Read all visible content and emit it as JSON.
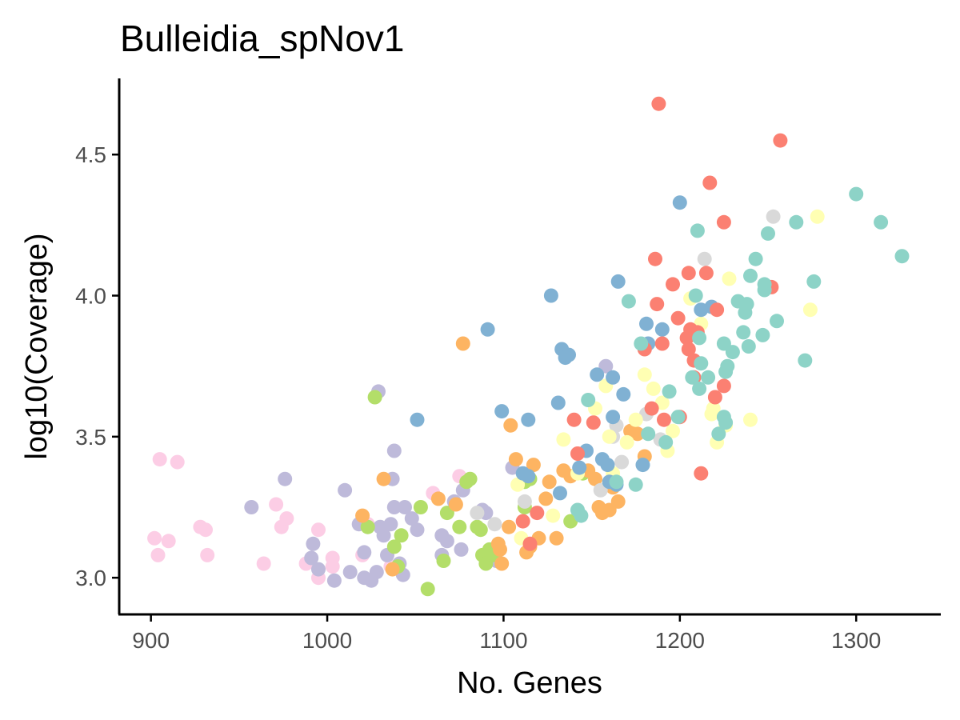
{
  "chart_data": {
    "type": "scatter",
    "title": "Bulleidia_spNov1",
    "xlabel": "No. Genes",
    "ylabel": "log10(Coverage)",
    "xlim": [
      882,
      1348
    ],
    "ylim": [
      2.87,
      4.77
    ],
    "x_ticks": [
      900,
      1000,
      1100,
      1200,
      1300
    ],
    "y_ticks": [
      3.0,
      3.5,
      4.0,
      4.5
    ],
    "x_tick_labels": [
      "900",
      "1000",
      "1100",
      "1200",
      "1300"
    ],
    "y_tick_labels": [
      "3.0",
      "3.5",
      "4.0",
      "4.5"
    ],
    "grid": false,
    "legend": "none",
    "point_colors": {
      "teal": "#8DD3C7",
      "yellow": "#FFFFB3",
      "lavender": "#BEBADA",
      "salmon": "#FB8072",
      "blue": "#80B1D3",
      "orange": "#FDB462",
      "green": "#B3DE69",
      "pink": "#FCCDE5",
      "grey": "#D9D9D9"
    },
    "series": [
      {
        "color": "#FCCDE5",
        "points": [
          [
            902,
            3.14
          ],
          [
            904,
            3.08
          ],
          [
            905,
            3.42
          ],
          [
            910,
            3.13
          ],
          [
            915,
            3.41
          ],
          [
            928,
            3.18
          ],
          [
            931,
            3.17
          ],
          [
            932,
            3.08
          ],
          [
            964,
            3.05
          ],
          [
            971,
            3.26
          ],
          [
            974,
            3.18
          ],
          [
            977,
            3.21
          ],
          [
            988,
            3.05
          ],
          [
            995,
            3.17
          ],
          [
            995,
            3.0
          ],
          [
            1003,
            3.07
          ],
          [
            1003,
            3.04
          ],
          [
            1020,
            3.08
          ],
          [
            1023,
            3.19
          ],
          [
            1036,
            3.04
          ],
          [
            1060,
            3.3
          ],
          [
            1075,
            3.36
          ]
        ]
      },
      {
        "color": "#BEBADA",
        "points": [
          [
            957,
            3.25
          ],
          [
            976,
            3.35
          ],
          [
            991,
            3.07
          ],
          [
            992,
            3.12
          ],
          [
            995,
            3.03
          ],
          [
            1004,
            2.99
          ],
          [
            1010,
            3.31
          ],
          [
            1013,
            3.02
          ],
          [
            1018,
            3.19
          ],
          [
            1021,
            3.09
          ],
          [
            1021,
            3.0
          ],
          [
            1025,
            2.99
          ],
          [
            1028,
            3.02
          ],
          [
            1029,
            3.66
          ],
          [
            1030,
            3.18
          ],
          [
            1032,
            3.15
          ],
          [
            1034,
            3.08
          ],
          [
            1036,
            3.19
          ],
          [
            1037,
            3.35
          ],
          [
            1038,
            3.45
          ],
          [
            1038,
            3.25
          ],
          [
            1041,
            3.05
          ],
          [
            1043,
            3.01
          ],
          [
            1044,
            3.25
          ],
          [
            1048,
            3.21
          ],
          [
            1051,
            3.17
          ],
          [
            1065,
            3.15
          ],
          [
            1065,
            3.08
          ],
          [
            1068,
            3.13
          ],
          [
            1072,
            3.27
          ],
          [
            1076,
            3.1
          ],
          [
            1077,
            3.31
          ],
          [
            1088,
            3.24
          ],
          [
            1090,
            3.23
          ],
          [
            1096,
            3.06
          ],
          [
            1105,
            3.39
          ],
          [
            1158,
            3.75
          ]
        ]
      },
      {
        "color": "#B3DE69",
        "points": [
          [
            1023,
            3.18
          ],
          [
            1027,
            3.64
          ],
          [
            1038,
            3.11
          ],
          [
            1040,
            3.04
          ],
          [
            1042,
            3.15
          ],
          [
            1053,
            3.25
          ],
          [
            1057,
            2.96
          ],
          [
            1066,
            3.06
          ],
          [
            1068,
            3.23
          ],
          [
            1075,
            3.18
          ],
          [
            1079,
            3.34
          ],
          [
            1081,
            3.35
          ],
          [
            1085,
            3.18
          ],
          [
            1087,
            3.17
          ],
          [
            1088,
            3.08
          ],
          [
            1090,
            3.05
          ],
          [
            1092,
            3.1
          ],
          [
            1094,
            3.08
          ],
          [
            1112,
            3.34
          ],
          [
            1112,
            3.25
          ],
          [
            1115,
            3.35
          ],
          [
            1138,
            3.2
          ],
          [
            1145,
            3.37
          ]
        ]
      },
      {
        "color": "#FDB462",
        "points": [
          [
            1020,
            3.22
          ],
          [
            1032,
            3.35
          ],
          [
            1037,
            3.03
          ],
          [
            1063,
            3.28
          ],
          [
            1073,
            3.26
          ],
          [
            1077,
            3.83
          ],
          [
            1097,
            3.12
          ],
          [
            1098,
            3.1
          ],
          [
            1099,
            3.05
          ],
          [
            1103,
            3.18
          ],
          [
            1104,
            3.54
          ],
          [
            1107,
            3.42
          ],
          [
            1113,
            3.09
          ],
          [
            1115,
            3.11
          ],
          [
            1117,
            3.4
          ],
          [
            1120,
            3.14
          ],
          [
            1124,
            3.28
          ],
          [
            1126,
            3.34
          ],
          [
            1130,
            3.14
          ],
          [
            1134,
            3.38
          ],
          [
            1138,
            3.36
          ],
          [
            1148,
            3.38
          ],
          [
            1152,
            3.35
          ],
          [
            1154,
            3.25
          ],
          [
            1156,
            3.23
          ],
          [
            1160,
            3.24
          ],
          [
            1162,
            3.32
          ],
          [
            1165,
            3.27
          ],
          [
            1172,
            3.52
          ],
          [
            1176,
            3.51
          ],
          [
            1180,
            3.43
          ]
        ]
      },
      {
        "color": "#D9D9D9",
        "points": [
          [
            1085,
            3.23
          ],
          [
            1095,
            3.19
          ],
          [
            1112,
            3.27
          ],
          [
            1155,
            3.31
          ],
          [
            1162,
            3.5
          ],
          [
            1164,
            3.54
          ],
          [
            1167,
            3.41
          ],
          [
            1181,
            3.58
          ],
          [
            1189,
            3.49
          ],
          [
            1214,
            4.13
          ],
          [
            1253,
            4.28
          ]
        ]
      },
      {
        "color": "#FFFFB3",
        "points": [
          [
            1108,
            3.33
          ],
          [
            1110,
            3.14
          ],
          [
            1128,
            3.22
          ],
          [
            1134,
            3.49
          ],
          [
            1142,
            3.37
          ],
          [
            1152,
            3.6
          ],
          [
            1158,
            3.68
          ],
          [
            1160,
            3.5
          ],
          [
            1162,
            3.37
          ],
          [
            1170,
            3.48
          ],
          [
            1175,
            3.56
          ],
          [
            1180,
            3.72
          ],
          [
            1185,
            3.67
          ],
          [
            1190,
            3.62
          ],
          [
            1193,
            3.45
          ],
          [
            1196,
            3.52
          ],
          [
            1206,
            3.99
          ],
          [
            1212,
            3.9
          ],
          [
            1218,
            3.58
          ],
          [
            1219,
            3.6
          ],
          [
            1221,
            3.48
          ],
          [
            1226,
            3.54
          ],
          [
            1228,
            4.06
          ],
          [
            1240,
            3.56
          ],
          [
            1274,
            3.95
          ],
          [
            1278,
            4.28
          ]
        ]
      },
      {
        "color": "#80B1D3",
        "points": [
          [
            1051,
            3.56
          ],
          [
            1091,
            3.88
          ],
          [
            1099,
            3.59
          ],
          [
            1111,
            3.37
          ],
          [
            1114,
            3.36
          ],
          [
            1114,
            3.56
          ],
          [
            1127,
            4.0
          ],
          [
            1131,
            3.62
          ],
          [
            1132,
            3.3
          ],
          [
            1133,
            3.81
          ],
          [
            1135,
            3.78
          ],
          [
            1137,
            3.79
          ],
          [
            1143,
            3.39
          ],
          [
            1147,
            3.45
          ],
          [
            1153,
            3.72
          ],
          [
            1156,
            3.42
          ],
          [
            1159,
            3.4
          ],
          [
            1160,
            3.34
          ],
          [
            1162,
            3.71
          ],
          [
            1162,
            3.57
          ],
          [
            1164,
            3.33
          ],
          [
            1165,
            4.05
          ],
          [
            1168,
            3.65
          ],
          [
            1179,
            3.4
          ],
          [
            1181,
            3.9
          ],
          [
            1182,
            3.83
          ],
          [
            1190,
            3.88
          ],
          [
            1200,
            4.33
          ],
          [
            1212,
            3.95
          ],
          [
            1218,
            3.96
          ]
        ]
      },
      {
        "color": "#FB8072",
        "points": [
          [
            1111,
            3.2
          ],
          [
            1115,
            3.12
          ],
          [
            1119,
            3.23
          ],
          [
            1140,
            3.56
          ],
          [
            1142,
            3.44
          ],
          [
            1151,
            3.55
          ],
          [
            1180,
            3.81
          ],
          [
            1184,
            3.6
          ],
          [
            1186,
            4.13
          ],
          [
            1187,
            3.97
          ],
          [
            1188,
            4.68
          ],
          [
            1190,
            3.83
          ],
          [
            1191,
            3.56
          ],
          [
            1196,
            4.04
          ],
          [
            1199,
            3.92
          ],
          [
            1200,
            3.57
          ],
          [
            1204,
            3.85
          ],
          [
            1205,
            3.81
          ],
          [
            1205,
            4.08
          ],
          [
            1206,
            3.88
          ],
          [
            1208,
            3.77
          ],
          [
            1208,
            3.71
          ],
          [
            1210,
            3.87
          ],
          [
            1212,
            3.37
          ],
          [
            1215,
            4.08
          ],
          [
            1217,
            4.4
          ],
          [
            1220,
            3.64
          ],
          [
            1221,
            3.95
          ],
          [
            1225,
            4.26
          ],
          [
            1225,
            3.68
          ],
          [
            1252,
            4.03
          ],
          [
            1257,
            4.55
          ]
        ]
      },
      {
        "color": "#8DD3C7",
        "points": [
          [
            1142,
            3.24
          ],
          [
            1144,
            3.22
          ],
          [
            1148,
            3.63
          ],
          [
            1164,
            3.34
          ],
          [
            1171,
            3.98
          ],
          [
            1175,
            3.33
          ],
          [
            1178,
            3.83
          ],
          [
            1182,
            3.51
          ],
          [
            1192,
            3.48
          ],
          [
            1194,
            3.66
          ],
          [
            1199,
            3.57
          ],
          [
            1207,
            3.71
          ],
          [
            1209,
            4.0
          ],
          [
            1210,
            4.23
          ],
          [
            1211,
            3.67
          ],
          [
            1211,
            3.85
          ],
          [
            1212,
            3.76
          ],
          [
            1216,
            3.71
          ],
          [
            1222,
            3.51
          ],
          [
            1225,
            3.83
          ],
          [
            1225,
            3.57
          ],
          [
            1226,
            3.73
          ],
          [
            1226,
            3.55
          ],
          [
            1227,
            3.75
          ],
          [
            1230,
            3.8
          ],
          [
            1233,
            3.98
          ],
          [
            1236,
            3.87
          ],
          [
            1237,
            3.94
          ],
          [
            1238,
            3.97
          ],
          [
            1239,
            3.82
          ],
          [
            1240,
            4.07
          ],
          [
            1243,
            4.13
          ],
          [
            1247,
            3.86
          ],
          [
            1248,
            4.02
          ],
          [
            1248,
            4.04
          ],
          [
            1250,
            4.22
          ],
          [
            1255,
            3.91
          ],
          [
            1266,
            4.26
          ],
          [
            1271,
            3.77
          ],
          [
            1276,
            4.05
          ],
          [
            1300,
            4.36
          ],
          [
            1314,
            4.26
          ],
          [
            1326,
            4.14
          ]
        ]
      }
    ]
  }
}
